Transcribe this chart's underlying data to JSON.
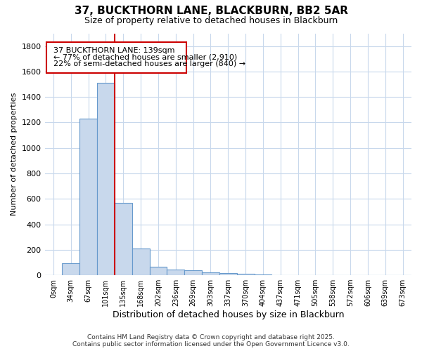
{
  "title": "37, BUCKTHORN LANE, BLACKBURN, BB2 5AR",
  "subtitle": "Size of property relative to detached houses in Blackburn",
  "xlabel": "Distribution of detached houses by size in Blackburn",
  "ylabel": "Number of detached properties",
  "footer1": "Contains HM Land Registry data © Crown copyright and database right 2025.",
  "footer2": "Contains public sector information licensed under the Open Government Licence v3.0.",
  "annotation_line1": "37 BUCKTHORN LANE: 139sqm",
  "annotation_line2": "← 77% of detached houses are smaller (2,910)",
  "annotation_line3": "22% of semi-detached houses are larger (840) →",
  "bar_color": "#c8d8ec",
  "bar_edge_color": "#6699cc",
  "grid_color": "#c8d8ec",
  "bg_color": "#ffffff",
  "plot_bg_color": "#ffffff",
  "redline_color": "#cc0000",
  "categories": [
    "0sqm",
    "34sqm",
    "67sqm",
    "101sqm",
    "135sqm",
    "168sqm",
    "202sqm",
    "236sqm",
    "269sqm",
    "303sqm",
    "337sqm",
    "370sqm",
    "404sqm",
    "437sqm",
    "471sqm",
    "505sqm",
    "538sqm",
    "572sqm",
    "606sqm",
    "639sqm",
    "673sqm"
  ],
  "values": [
    0,
    95,
    1230,
    1510,
    570,
    210,
    65,
    47,
    37,
    22,
    15,
    10,
    5,
    2,
    1,
    1,
    0,
    0,
    0,
    0,
    0
  ],
  "property_bin_index": 4,
  "ylim": [
    0,
    1900
  ],
  "yticks": [
    0,
    200,
    400,
    600,
    800,
    1000,
    1200,
    1400,
    1600,
    1800
  ]
}
